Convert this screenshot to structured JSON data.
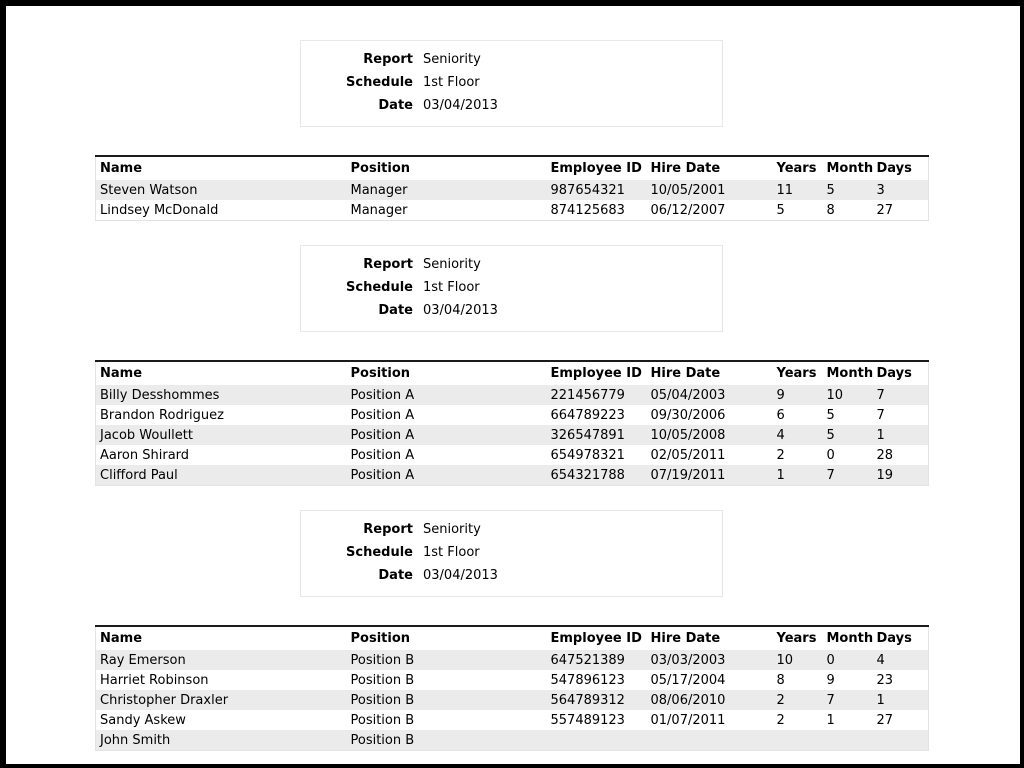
{
  "colors": {
    "frame": "#000000",
    "paper": "#ffffff",
    "text": "#000000",
    "stripe": "#ebebeb",
    "box_border": "#e7e7e7",
    "table_top_border": "#1a1a1a",
    "table_edge_border": "#e3e3e3"
  },
  "sections": [
    {
      "info": {
        "rows": [
          {
            "label": "Report",
            "value": "Seniority"
          },
          {
            "label": "Schedule",
            "value": "1st Floor"
          },
          {
            "label": "Date",
            "value": "03/04/2013"
          }
        ]
      },
      "table": {
        "columns": [
          "Name",
          "Position",
          "Employee ID",
          "Hire Date",
          "Years",
          "Months",
          "Days"
        ],
        "rows": [
          [
            "Steven Watson",
            "Manager",
            "987654321",
            "10/05/2001",
            "11",
            "5",
            "3"
          ],
          [
            "Lindsey McDonald",
            "Manager",
            "874125683",
            "06/12/2007",
            "5",
            "8",
            "27"
          ]
        ]
      }
    },
    {
      "info": {
        "rows": [
          {
            "label": "Report",
            "value": "Seniority"
          },
          {
            "label": "Schedule",
            "value": "1st Floor"
          },
          {
            "label": "Date",
            "value": "03/04/2013"
          }
        ]
      },
      "table": {
        "columns": [
          "Name",
          "Position",
          "Employee ID",
          "Hire Date",
          "Years",
          "Months",
          "Days"
        ],
        "rows": [
          [
            "Billy Desshommes",
            "Position A",
            "221456779",
            "05/04/2003",
            "9",
            "10",
            "7"
          ],
          [
            "Brandon Rodriguez",
            "Position A",
            "664789223",
            "09/30/2006",
            "6",
            "5",
            "7"
          ],
          [
            "Jacob Woullett",
            "Position A",
            "326547891",
            "10/05/2008",
            "4",
            "5",
            "1"
          ],
          [
            "Aaron Shirard",
            "Position A",
            "654978321",
            "02/05/2011",
            "2",
            "0",
            "28"
          ],
          [
            "Clifford Paul",
            "Position A",
            "654321788",
            "07/19/2011",
            "1",
            "7",
            "19"
          ]
        ]
      }
    },
    {
      "info": {
        "rows": [
          {
            "label": "Report",
            "value": "Seniority"
          },
          {
            "label": "Schedule",
            "value": "1st Floor"
          },
          {
            "label": "Date",
            "value": "03/04/2013"
          }
        ]
      },
      "table": {
        "columns": [
          "Name",
          "Position",
          "Employee ID",
          "Hire Date",
          "Years",
          "Months",
          "Days"
        ],
        "rows": [
          [
            "Ray Emerson",
            "Position B",
            "647521389",
            "03/03/2003",
            "10",
            "0",
            "4"
          ],
          [
            "Harriet Robinson",
            "Position B",
            "547896123",
            "05/17/2004",
            "8",
            "9",
            "23"
          ],
          [
            "Christopher Draxler",
            "Position B",
            "564789312",
            "08/06/2010",
            "2",
            "7",
            "1"
          ],
          [
            "Sandy Askew",
            "Position B",
            "557489123",
            "01/07/2011",
            "2",
            "1",
            "27"
          ],
          [
            "John Smith",
            "Position B",
            "",
            "",
            "",
            "",
            ""
          ]
        ]
      }
    }
  ]
}
